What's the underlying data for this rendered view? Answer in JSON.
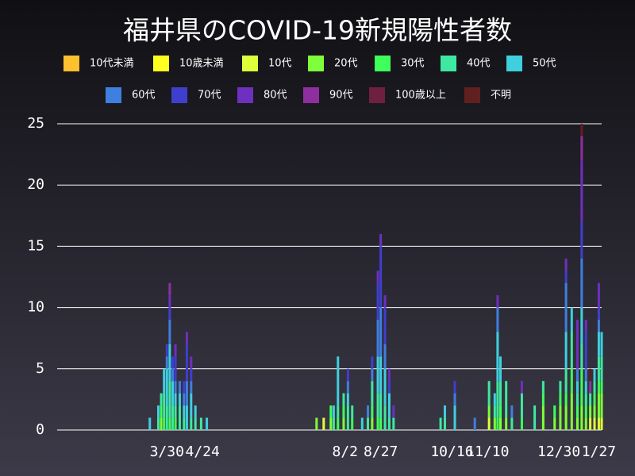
{
  "chart_data": {
    "type": "stacked-bar",
    "title": "福井県のCOVID-19新規陽性者数",
    "x": [
      -12,
      -6,
      -4,
      -2,
      0,
      2,
      4,
      6,
      9,
      12,
      14,
      17,
      20,
      24,
      28,
      105,
      110,
      115,
      117,
      120,
      124,
      127,
      130,
      137,
      141,
      144,
      148,
      150,
      153,
      156,
      159,
      192,
      195,
      202,
      216,
      226,
      230,
      232,
      234,
      238,
      242,
      249,
      258,
      264,
      272,
      276,
      280,
      284,
      288,
      291,
      294,
      297,
      300,
      303,
      305
    ],
    "xlim": [
      -77,
      305
    ],
    "xticks": [
      {
        "value": 0,
        "label": "3/30"
      },
      {
        "value": 25,
        "label": "4/24"
      },
      {
        "value": 125,
        "label": "8/2"
      },
      {
        "value": 150,
        "label": "8/27"
      },
      {
        "value": 200,
        "label": "10/16"
      },
      {
        "value": 225,
        "label": "11/10"
      },
      {
        "value": 275,
        "label": "12/30"
      },
      {
        "value": 303,
        "label": "1/27"
      }
    ],
    "ylim": [
      0,
      25
    ],
    "yticks": [
      0,
      5,
      10,
      15,
      20,
      25
    ],
    "grid": true,
    "series": [
      {
        "name": "10代未満",
        "color": "#fdc02e",
        "values": [
          0,
          0,
          0,
          0,
          0,
          0,
          0,
          0,
          0,
          0,
          0,
          0,
          0,
          0,
          0,
          0,
          0,
          0,
          0,
          0,
          0,
          0,
          0,
          0,
          0,
          0,
          0,
          0,
          0,
          0,
          0,
          0,
          0,
          0,
          0,
          0,
          0,
          0,
          0,
          0,
          0,
          0,
          0,
          0,
          0,
          0,
          0,
          0,
          0,
          0,
          0,
          0,
          0,
          0,
          0
        ]
      },
      {
        "name": "10歳未満",
        "color": "#ffff22",
        "values": [
          0,
          0,
          0,
          0,
          0,
          0,
          0,
          0,
          0,
          0,
          0,
          0,
          0,
          0,
          0,
          0,
          0,
          0,
          0,
          0,
          0,
          0,
          0,
          0,
          0,
          0,
          0,
          0,
          0,
          0,
          0,
          0,
          0,
          0,
          0,
          0,
          0,
          0,
          0,
          0,
          0,
          0,
          0,
          0,
          0,
          0,
          0,
          0,
          0,
          0,
          0,
          0,
          0,
          0,
          0
        ]
      },
      {
        "name": "10代",
        "color": "#dfff3a",
        "values": [
          0,
          0,
          0,
          0,
          0,
          0,
          0,
          0,
          0,
          0,
          0,
          0,
          0,
          0,
          0,
          0,
          1,
          0,
          0,
          0,
          0,
          0,
          0,
          0,
          0,
          0,
          0,
          0,
          0,
          0,
          0,
          0,
          0,
          0,
          0,
          1,
          0,
          0,
          0,
          0,
          0,
          0,
          0,
          0,
          0,
          0,
          0,
          0,
          0,
          0,
          0,
          1,
          1,
          1,
          1
        ]
      },
      {
        "name": "20代",
        "color": "#7fff3a",
        "values": [
          0,
          0,
          1,
          0,
          0,
          0,
          0,
          0,
          0,
          0,
          0,
          0,
          0,
          0,
          0,
          1,
          0,
          1,
          0,
          0,
          1,
          0,
          0,
          0,
          0,
          1,
          0,
          0,
          0,
          0,
          0,
          0,
          0,
          0,
          0,
          1,
          1,
          0,
          1,
          1,
          0,
          0,
          0,
          2,
          1,
          2,
          2,
          3,
          1,
          2,
          1,
          1,
          1,
          2,
          2
        ]
      },
      {
        "name": "30代",
        "color": "#3fff5a",
        "values": [
          0,
          0,
          1,
          1,
          0,
          1,
          0,
          1,
          0,
          0,
          0,
          0,
          0,
          0,
          0,
          0,
          0,
          1,
          0,
          1,
          1,
          0,
          1,
          0,
          0,
          1,
          1,
          1,
          0,
          0,
          0,
          0,
          0,
          0,
          0,
          0,
          0,
          1,
          1,
          0,
          0,
          1,
          0,
          1,
          1,
          1,
          1,
          2,
          1,
          3,
          1,
          0,
          1,
          1,
          1
        ]
      },
      {
        "name": "40代",
        "color": "#3fe8a0",
        "values": [
          0,
          1,
          1,
          2,
          2,
          3,
          2,
          1,
          2,
          1,
          0,
          1,
          1,
          1,
          0,
          0,
          0,
          0,
          1,
          1,
          1,
          2,
          1,
          0,
          1,
          2,
          2,
          2,
          2,
          1,
          1,
          1,
          1,
          0,
          0,
          2,
          1,
          3,
          2,
          3,
          1,
          2,
          2,
          1,
          0,
          1,
          2,
          3,
          1,
          2,
          1,
          1,
          1,
          2,
          2
        ]
      },
      {
        "name": "50代",
        "color": "#3fcfdf",
        "values": [
          1,
          1,
          0,
          2,
          3,
          3,
          2,
          1,
          1,
          1,
          2,
          2,
          1,
          0,
          1,
          0,
          0,
          0,
          1,
          4,
          0,
          1,
          0,
          1,
          0,
          0,
          3,
          3,
          3,
          2,
          0,
          0,
          1,
          2,
          0,
          0,
          1,
          4,
          2,
          0,
          0,
          0,
          0,
          0,
          0,
          0,
          3,
          2,
          1,
          3,
          1,
          0,
          1,
          2,
          2
        ]
      },
      {
        "name": "60代",
        "color": "#3f7fdf",
        "values": [
          0,
          0,
          0,
          0,
          1,
          2,
          1,
          1,
          1,
          1,
          2,
          1,
          0,
          0,
          0,
          0,
          0,
          0,
          0,
          0,
          0,
          1,
          0,
          0,
          1,
          1,
          3,
          4,
          2,
          0,
          0,
          0,
          0,
          1,
          1,
          0,
          0,
          2,
          0,
          0,
          1,
          0,
          0,
          0,
          0,
          0,
          4,
          0,
          1,
          4,
          1,
          0,
          0,
          1,
          0
        ]
      },
      {
        "name": "70代",
        "color": "#3f3fcf",
        "values": [
          0,
          0,
          0,
          0,
          1,
          1,
          1,
          2,
          0,
          1,
          3,
          1,
          0,
          0,
          0,
          0,
          0,
          0,
          0,
          0,
          0,
          1,
          0,
          0,
          0,
          1,
          3,
          5,
          3,
          1,
          0,
          0,
          0,
          1,
          0,
          0,
          0,
          0,
          0,
          0,
          0,
          0,
          0,
          0,
          0,
          0,
          1,
          0,
          0,
          3,
          3,
          0,
          0,
          1,
          0
        ]
      },
      {
        "name": "80代",
        "color": "#6f2fbf",
        "values": [
          0,
          0,
          0,
          0,
          0,
          1,
          0,
          1,
          0,
          0,
          1,
          1,
          0,
          0,
          0,
          0,
          0,
          0,
          0,
          0,
          0,
          0,
          0,
          0,
          0,
          0,
          1,
          1,
          1,
          1,
          1,
          0,
          0,
          0,
          0,
          0,
          0,
          1,
          0,
          0,
          0,
          1,
          0,
          0,
          0,
          0,
          1,
          0,
          4,
          5,
          1,
          0,
          0,
          2,
          0
        ]
      },
      {
        "name": "90代",
        "color": "#8f2f9f",
        "values": [
          0,
          0,
          0,
          0,
          0,
          1,
          0,
          0,
          0,
          0,
          0,
          0,
          0,
          0,
          0,
          0,
          0,
          0,
          0,
          0,
          0,
          0,
          0,
          0,
          0,
          0,
          0,
          0,
          0,
          0,
          0,
          0,
          0,
          0,
          0,
          0,
          0,
          0,
          0,
          0,
          0,
          0,
          0,
          0,
          0,
          0,
          0,
          0,
          0,
          2,
          0,
          1,
          0,
          0,
          0
        ]
      },
      {
        "name": "100歳以上",
        "color": "#6f2040",
        "values": [
          0,
          0,
          0,
          0,
          0,
          0,
          0,
          0,
          0,
          0,
          0,
          0,
          0,
          0,
          0,
          0,
          0,
          0,
          0,
          0,
          0,
          0,
          0,
          0,
          0,
          0,
          0,
          0,
          0,
          0,
          0,
          0,
          0,
          0,
          0,
          0,
          0,
          0,
          0,
          0,
          0,
          0,
          0,
          0,
          0,
          0,
          0,
          0,
          0,
          0,
          0,
          0,
          0,
          0,
          0
        ]
      },
      {
        "name": "不明",
        "color": "#602020",
        "values": [
          0,
          0,
          0,
          0,
          0,
          0,
          0,
          0,
          0,
          0,
          0,
          0,
          0,
          0,
          0,
          0,
          0,
          0,
          0,
          0,
          0,
          0,
          0,
          0,
          0,
          0,
          0,
          0,
          0,
          0,
          0,
          0,
          0,
          0,
          0,
          0,
          0,
          0,
          0,
          0,
          0,
          0,
          0,
          0,
          0,
          0,
          0,
          0,
          0,
          1,
          0,
          1,
          0,
          0,
          0
        ]
      }
    ]
  }
}
